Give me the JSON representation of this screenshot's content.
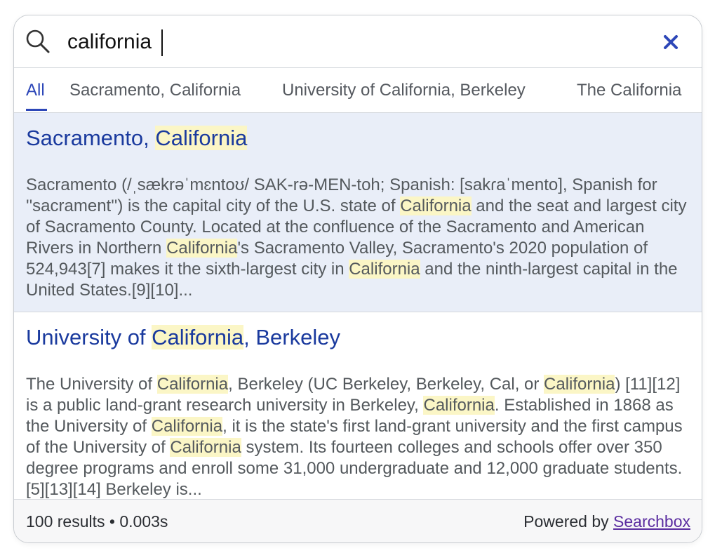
{
  "search": {
    "query": "california",
    "clear_label": "×"
  },
  "tabs": [
    {
      "label": "All",
      "active": true
    },
    {
      "label": "Sacramento, California",
      "active": false
    },
    {
      "label": "University of California, Berkeley",
      "active": false
    },
    {
      "label": "The California",
      "active": false
    }
  ],
  "results": [
    {
      "title_parts": [
        {
          "text": "Sacramento, ",
          "hl": false
        },
        {
          "text": "California",
          "hl": true
        }
      ],
      "snippet_parts": [
        {
          "text": "Sacramento (/ˌsækrəˈmɛntoʊ/ SAK-rə-MEN-toh; Spanish: [sakɾaˈmento], Spanish for ''sacrament'') is the capital city of the U.S. state of ",
          "hl": false
        },
        {
          "text": "California",
          "hl": true
        },
        {
          "text": " and the seat and largest city of Sacramento County. Located at the confluence of the Sacramento and American Rivers in Northern ",
          "hl": false
        },
        {
          "text": "California",
          "hl": true
        },
        {
          "text": "'s Sacramento Valley, Sacramento's 2020 population of 524,943[7] makes it the sixth-largest city in ",
          "hl": false
        },
        {
          "text": "California",
          "hl": true
        },
        {
          "text": " and the ninth-largest capital in the United States.[9][10]...",
          "hl": false
        }
      ],
      "selected": true
    },
    {
      "title_parts": [
        {
          "text": "University of ",
          "hl": false
        },
        {
          "text": "California",
          "hl": true
        },
        {
          "text": ", Berkeley",
          "hl": false
        }
      ],
      "snippet_parts": [
        {
          "text": "The University of ",
          "hl": false
        },
        {
          "text": "California",
          "hl": true
        },
        {
          "text": ", Berkeley (UC Berkeley, Berkeley, Cal, or ",
          "hl": false
        },
        {
          "text": "California",
          "hl": true
        },
        {
          "text": ") [11][12] is a public land-grant research university in Berkeley, ",
          "hl": false
        },
        {
          "text": "California",
          "hl": true
        },
        {
          "text": ". Established in 1868 as the University of ",
          "hl": false
        },
        {
          "text": "California",
          "hl": true
        },
        {
          "text": ", it is the state's first land-grant university and the first campus of the University of ",
          "hl": false
        },
        {
          "text": "California",
          "hl": true
        },
        {
          "text": " system. Its fourteen colleges and schools offer over 350 degree programs and enroll some 31,000 undergraduate and 12,000 graduate students.[5][13][14] Berkeley is...",
          "hl": false
        }
      ],
      "selected": false
    }
  ],
  "footer": {
    "stats": "100 results • 0.003s",
    "powered_prefix": "Powered by ",
    "powered_link": "Searchbox"
  },
  "colors": {
    "accent": "#2d47b8",
    "title_link": "#1a3a9e",
    "highlight": "#fbf6c6",
    "selected_bg": "#e9eef8",
    "clear_icon": "#2d47b8"
  },
  "icons": {
    "search": "magnifier-icon",
    "clear": "close-icon"
  }
}
